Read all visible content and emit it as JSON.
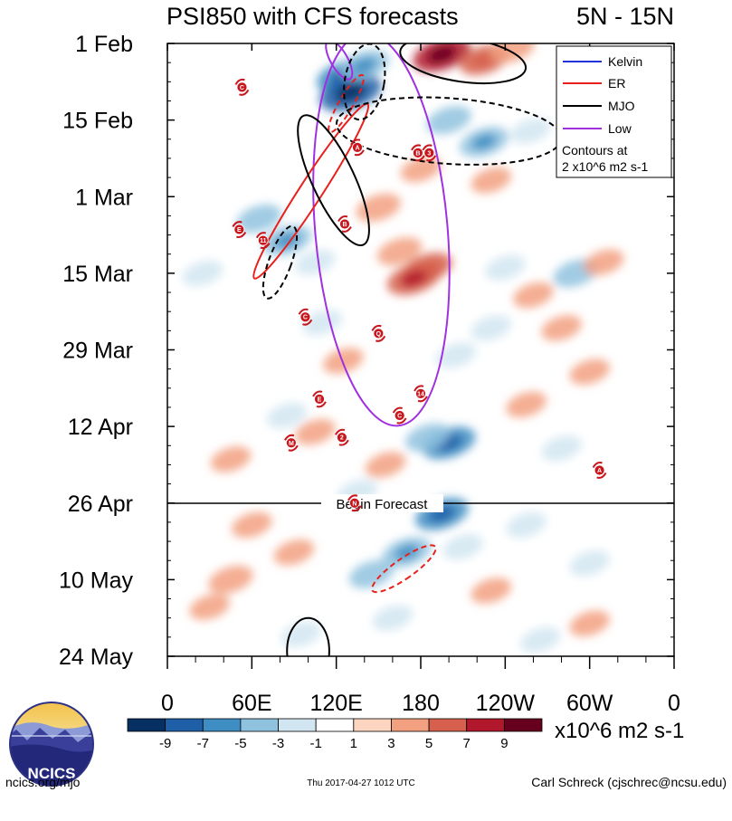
{
  "chart_data": {
    "type": "heatmap",
    "title": "PSI850 with CFS forecasts",
    "region": "5N - 15N",
    "y_ticks": [
      "1 Feb",
      "15 Feb",
      "1 Mar",
      "15 Mar",
      "29 Mar",
      "12 Apr",
      "26 Apr",
      "10 May",
      "24 May"
    ],
    "x_ticks": [
      "0",
      "60E",
      "120E",
      "180",
      "120W",
      "60W",
      "0"
    ],
    "x_range_deg": [
      0,
      360
    ],
    "y_range_days": [
      0,
      112
    ],
    "forecast_label": "Begin Forecast",
    "forecast_start_day": 84,
    "legend": {
      "entries": [
        {
          "name": "Kelvin",
          "color": "#2233dd"
        },
        {
          "name": "ER",
          "color": "#e8201c"
        },
        {
          "name": "MJO",
          "color": "#000000"
        },
        {
          "name": "Low",
          "color": "#a030e0"
        }
      ],
      "note_line1": "Contours at",
      "note_line2": "2 x10^6 m2 s-1",
      "placement": "top-right"
    },
    "colorbar": {
      "labels": [
        "-9",
        "-7",
        "-5",
        "-3",
        "-1",
        "1",
        "3",
        "5",
        "7",
        "9"
      ],
      "colors": [
        "#053061",
        "#1f5fa8",
        "#3f8ec3",
        "#8fc2de",
        "#d2e6f1",
        "#ffffff",
        "#fcd5c0",
        "#f2a080",
        "#d6604d",
        "#b2182b",
        "#67001f"
      ],
      "units": "x10^6 m2 s-1"
    },
    "anomaly_blobs": [
      {
        "lon": 125,
        "day": 6,
        "v": -6
      },
      {
        "lon": 130,
        "day": 9,
        "v": -8
      },
      {
        "lon": 140,
        "day": 4,
        "v": -5
      },
      {
        "lon": 195,
        "day": 2,
        "v": 7
      },
      {
        "lon": 225,
        "day": 3,
        "v": 5
      },
      {
        "lon": 245,
        "day": 1,
        "v": 4
      },
      {
        "lon": 200,
        "day": 14,
        "v": -4
      },
      {
        "lon": 225,
        "day": 18,
        "v": -5
      },
      {
        "lon": 258,
        "day": 16,
        "v": -3
      },
      {
        "lon": 180,
        "day": 23,
        "v": 3
      },
      {
        "lon": 230,
        "day": 25,
        "v": 3
      },
      {
        "lon": 150,
        "day": 30,
        "v": 4
      },
      {
        "lon": 65,
        "day": 32,
        "v": -4
      },
      {
        "lon": 85,
        "day": 36,
        "v": -5
      },
      {
        "lon": 105,
        "day": 40,
        "v": -3
      },
      {
        "lon": 165,
        "day": 38,
        "v": 4
      },
      {
        "lon": 185,
        "day": 41,
        "v": 5
      },
      {
        "lon": 175,
        "day": 43,
        "v": 6
      },
      {
        "lon": 240,
        "day": 41,
        "v": -3
      },
      {
        "lon": 290,
        "day": 42,
        "v": -4
      },
      {
        "lon": 310,
        "day": 40,
        "v": 3
      },
      {
        "lon": 25,
        "day": 42,
        "v": -3
      },
      {
        "lon": 260,
        "day": 46,
        "v": 3
      },
      {
        "lon": 110,
        "day": 51,
        "v": -3
      },
      {
        "lon": 230,
        "day": 52,
        "v": -3
      },
      {
        "lon": 280,
        "day": 52,
        "v": 3
      },
      {
        "lon": 125,
        "day": 58,
        "v": 3
      },
      {
        "lon": 205,
        "day": 57,
        "v": -3
      },
      {
        "lon": 300,
        "day": 60,
        "v": 3
      },
      {
        "lon": 255,
        "day": 66,
        "v": 3
      },
      {
        "lon": 85,
        "day": 68,
        "v": -3
      },
      {
        "lon": 105,
        "day": 71,
        "v": 3
      },
      {
        "lon": 200,
        "day": 73,
        "v": -6
      },
      {
        "lon": 185,
        "day": 72,
        "v": -4
      },
      {
        "lon": 155,
        "day": 77,
        "v": 3
      },
      {
        "lon": 135,
        "day": 82,
        "v": -3
      },
      {
        "lon": 280,
        "day": 74,
        "v": -3
      },
      {
        "lon": 45,
        "day": 76,
        "v": 3
      },
      {
        "lon": 195,
        "day": 86,
        "v": -6
      },
      {
        "lon": 170,
        "day": 93,
        "v": -5
      },
      {
        "lon": 145,
        "day": 97,
        "v": -4
      },
      {
        "lon": 210,
        "day": 92,
        "v": -3
      },
      {
        "lon": 255,
        "day": 88,
        "v": -3
      },
      {
        "lon": 300,
        "day": 95,
        "v": -3
      },
      {
        "lon": 60,
        "day": 88,
        "v": 3
      },
      {
        "lon": 45,
        "day": 98,
        "v": 4
      },
      {
        "lon": 90,
        "day": 93,
        "v": 3
      },
      {
        "lon": 30,
        "day": 103,
        "v": 3
      },
      {
        "lon": 230,
        "day": 100,
        "v": 3
      },
      {
        "lon": 300,
        "day": 106,
        "v": 3
      },
      {
        "lon": 95,
        "day": 108,
        "v": -3
      },
      {
        "lon": 160,
        "day": 105,
        "v": -3
      },
      {
        "lon": 265,
        "day": 109,
        "v": -3
      }
    ],
    "contours": [
      {
        "type": "Low",
        "style": "solid",
        "center_lon": 152,
        "center_day": 34,
        "half_width_deg": 47,
        "half_height_days": 36,
        "angle_deg": -5
      },
      {
        "type": "Low",
        "style": "solid",
        "center_lon": 122,
        "center_day": 3,
        "half_width_deg": 6,
        "half_height_days": 4,
        "angle_deg": -30
      },
      {
        "type": "ER",
        "style": "solid",
        "center_lon": 102,
        "center_day": 27,
        "half_width_deg": 8,
        "half_height_days": 19,
        "angle_deg": 33
      },
      {
        "type": "ER",
        "style": "dashed",
        "center_lon": 127,
        "center_day": 11,
        "half_width_deg": 5,
        "half_height_days": 6,
        "angle_deg": 30
      },
      {
        "type": "ER",
        "style": "dashed",
        "center_lon": 168,
        "center_day": 96,
        "half_width_deg": 7,
        "half_height_days": 7,
        "angle_deg": 55
      },
      {
        "type": "MJO",
        "style": "solid",
        "center_lon": 210,
        "center_day": 3,
        "half_width_deg": 45,
        "half_height_days": 4,
        "angle_deg": 8
      },
      {
        "type": "MJO",
        "style": "solid",
        "center_lon": 118,
        "center_day": 25,
        "half_width_deg": 15,
        "half_height_days": 13,
        "angle_deg": -25
      },
      {
        "type": "MJO",
        "style": "dashed",
        "center_lon": 140,
        "center_day": 7,
        "half_width_deg": 14,
        "half_height_days": 7,
        "angle_deg": 10
      },
      {
        "type": "MJO",
        "style": "dashed",
        "center_lon": 200,
        "center_day": 16,
        "half_width_deg": 80,
        "half_height_days": 6,
        "angle_deg": 4
      },
      {
        "type": "MJO",
        "style": "dashed",
        "center_lon": 80,
        "center_day": 40,
        "half_width_deg": 8,
        "half_height_days": 7,
        "angle_deg": 20
      },
      {
        "type": "MJO",
        "style": "solid",
        "center_lon": 100,
        "center_day": 111,
        "half_width_deg": 15,
        "half_height_days": 6,
        "angle_deg": 0
      }
    ],
    "storms": [
      {
        "label": "C",
        "lon": 53,
        "day": 8
      },
      {
        "label": "A",
        "lon": 135,
        "day": 19
      },
      {
        "label": "B",
        "lon": 178,
        "day": 20
      },
      {
        "label": "3",
        "lon": 186,
        "day": 20
      },
      {
        "label": "E",
        "lon": 51,
        "day": 34
      },
      {
        "label": "B",
        "lon": 126,
        "day": 33
      },
      {
        "label": "11",
        "lon": 68,
        "day": 36
      },
      {
        "label": "C",
        "lon": 98,
        "day": 50
      },
      {
        "label": "Q",
        "lon": 150,
        "day": 53
      },
      {
        "label": "14",
        "lon": 180,
        "day": 64
      },
      {
        "label": "E",
        "lon": 108,
        "day": 65
      },
      {
        "label": "C",
        "lon": 165,
        "day": 68
      },
      {
        "label": "2",
        "lon": 124,
        "day": 72
      },
      {
        "label": "M",
        "lon": 88,
        "day": 73
      },
      {
        "label": "A",
        "lon": 307,
        "day": 78
      },
      {
        "label": "N",
        "lon": 133,
        "day": 84
      }
    ]
  },
  "logo": {
    "text": "NCICS"
  },
  "footer": {
    "left": "ncics.org/mjo",
    "center": "Thu 2017-04-27 1012 UTC",
    "right": "Carl Schreck (cjschrec@ncsu.edu)"
  }
}
